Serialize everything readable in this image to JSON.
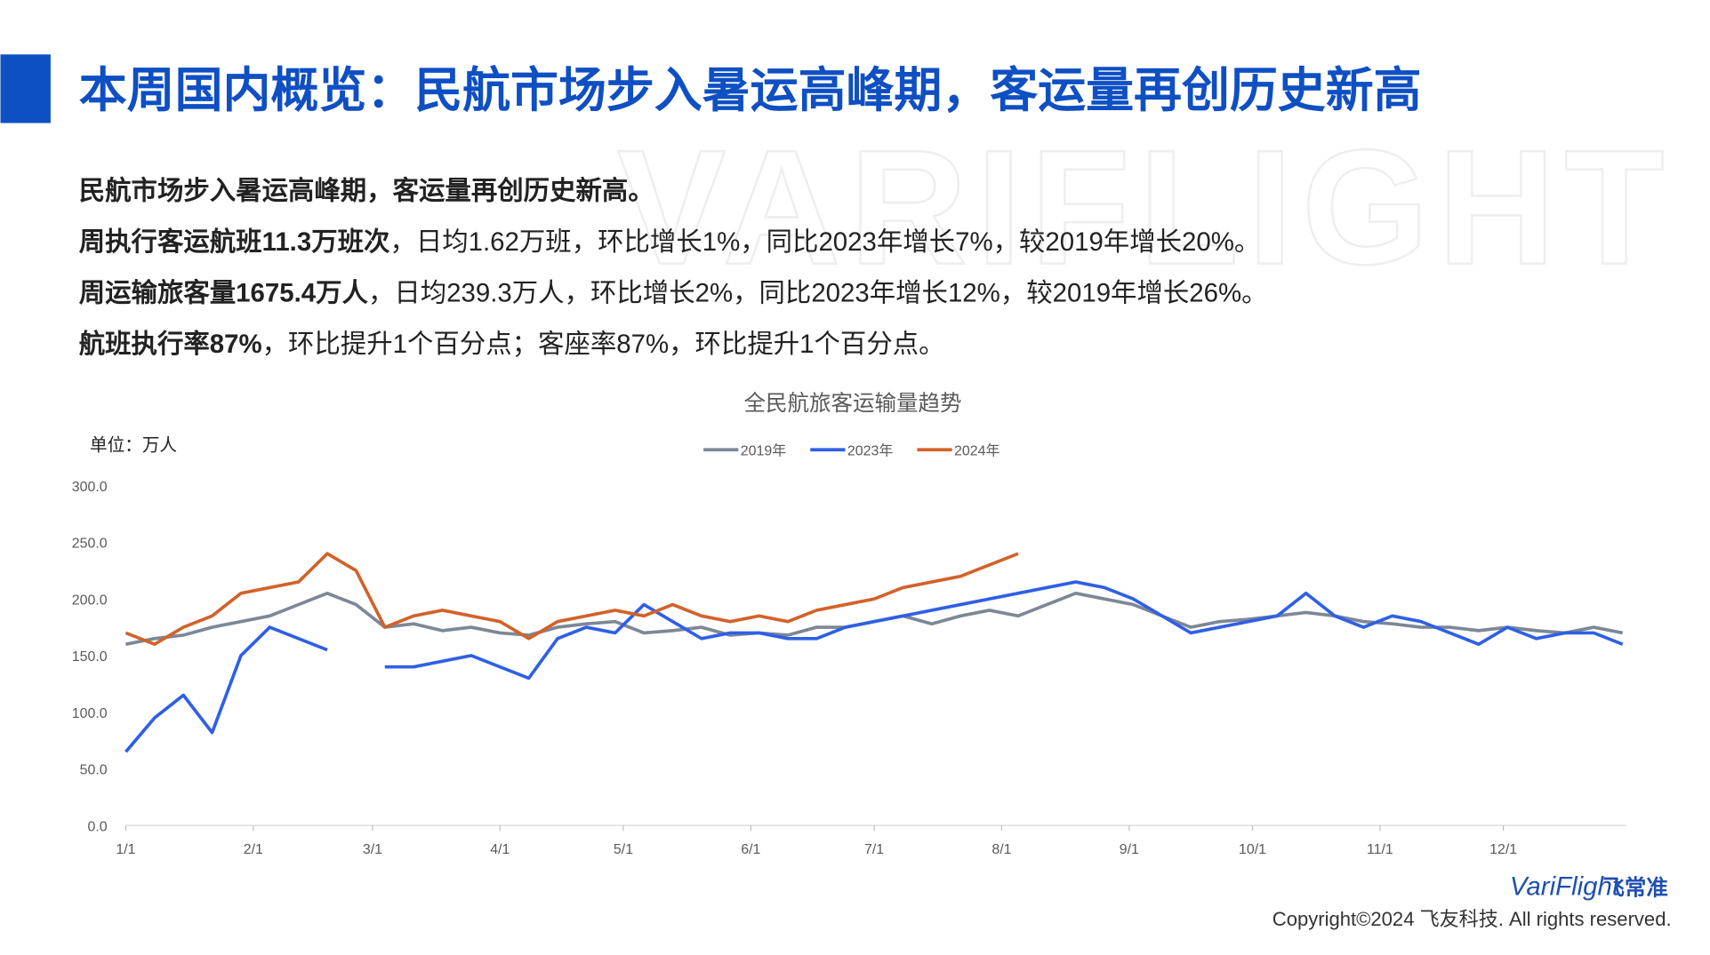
{
  "header": {
    "title": "本周国内概览：民航市场步入暑运高峰期，客运量再创历史新高"
  },
  "summary": [
    {
      "bold": "民航市场步入暑运高峰期，客运量再创历史新高。"
    },
    {
      "bold": "周执行客运航班11.3万班次",
      "rest": "，日均1.62万班，环比增长1%，同比2023年增长7%，较2019年增长20%。"
    },
    {
      "bold": "周运输旅客量1675.4万人",
      "rest": "，日均239.3万人，环比增长2%，同比2023年增长12%，较2019年增长26%。"
    },
    {
      "bold": "航班执行率87%",
      "rest": "，环比提升1个百分点；客座率87%，环比提升1个百分点。"
    }
  ],
  "footer": {
    "watermark": "VARIFLIGHT",
    "logo": "VariFlight",
    "logo_cn": "飞常准",
    "copyright": "Copyright©2024 飞友科技. All rights reserved."
  },
  "chart_data": {
    "type": "line",
    "title": "全民航旅客运输量趋势",
    "y_label": "单位：万人",
    "legend": "top",
    "x": [
      0,
      7,
      14,
      21,
      28,
      35,
      42,
      49,
      56,
      63,
      70,
      77,
      84,
      91,
      98,
      105,
      112,
      119,
      126,
      133,
      140,
      147,
      154,
      161,
      168,
      175,
      182,
      189,
      196,
      203,
      210,
      217,
      224,
      231,
      238,
      245,
      252,
      259,
      266,
      273,
      280,
      287,
      294,
      301,
      308,
      315,
      322,
      329,
      336,
      343,
      350,
      357,
      364
    ],
    "xlim": [
      0,
      365
    ],
    "xticks": [
      {
        "value": 0,
        "label": "1/1"
      },
      {
        "value": 31,
        "label": "2/1"
      },
      {
        "value": 60,
        "label": "3/1"
      },
      {
        "value": 91,
        "label": "4/1"
      },
      {
        "value": 121,
        "label": "5/1"
      },
      {
        "value": 152,
        "label": "6/1"
      },
      {
        "value": 182,
        "label": "7/1"
      },
      {
        "value": 213,
        "label": "8/1"
      },
      {
        "value": 244,
        "label": "9/1"
      },
      {
        "value": 274,
        "label": "10/1"
      },
      {
        "value": 305,
        "label": "11/1"
      },
      {
        "value": 335,
        "label": "12/1"
      }
    ],
    "ylim": [
      0,
      300
    ],
    "yticks": [
      {
        "value": 0,
        "label": "0.0"
      },
      {
        "value": 50,
        "label": "50.0"
      },
      {
        "value": 100,
        "label": "100.0"
      },
      {
        "value": 150,
        "label": "150.0"
      },
      {
        "value": 200,
        "label": "200.0"
      },
      {
        "value": 250,
        "label": "250.0"
      },
      {
        "value": 300,
        "label": "300.0"
      }
    ],
    "series": [
      {
        "name": "2019年",
        "color": "#7d8796",
        "values": [
          160,
          165,
          168,
          175,
          180,
          185,
          195,
          205,
          195,
          175,
          178,
          172,
          175,
          170,
          168,
          175,
          178,
          180,
          170,
          172,
          175,
          168,
          170,
          168,
          175,
          175,
          180,
          185,
          178,
          185,
          190,
          185,
          195,
          205,
          200,
          195,
          185,
          175,
          180,
          182,
          185,
          188,
          185,
          180,
          178,
          175,
          175,
          172,
          175,
          172,
          170,
          175,
          170
        ]
      },
      {
        "name": "2023年",
        "color": "#2f5fe6",
        "values": [
          65,
          95,
          115,
          82,
          150,
          175,
          165,
          155,
          null,
          140,
          140,
          145,
          150,
          140,
          130,
          165,
          175,
          170,
          195,
          180,
          165,
          170,
          170,
          165,
          165,
          175,
          180,
          185,
          190,
          195,
          200,
          205,
          210,
          215,
          210,
          200,
          185,
          170,
          175,
          180,
          185,
          205,
          185,
          175,
          185,
          180,
          170,
          160,
          175,
          165,
          170,
          170,
          160
        ]
      },
      {
        "name": "2024年",
        "color": "#d2622a",
        "values": [
          170,
          160,
          175,
          185,
          205,
          210,
          215,
          240,
          225,
          175,
          185,
          190,
          185,
          180,
          165,
          180,
          185,
          190,
          185,
          195,
          185,
          180,
          185,
          180,
          190,
          195,
          200,
          210,
          215,
          220,
          230,
          240,
          null,
          null,
          null,
          null,
          null,
          null,
          null,
          null,
          null,
          null,
          null,
          null,
          null,
          null,
          null,
          null,
          null,
          null,
          null,
          null,
          null
        ]
      }
    ]
  }
}
